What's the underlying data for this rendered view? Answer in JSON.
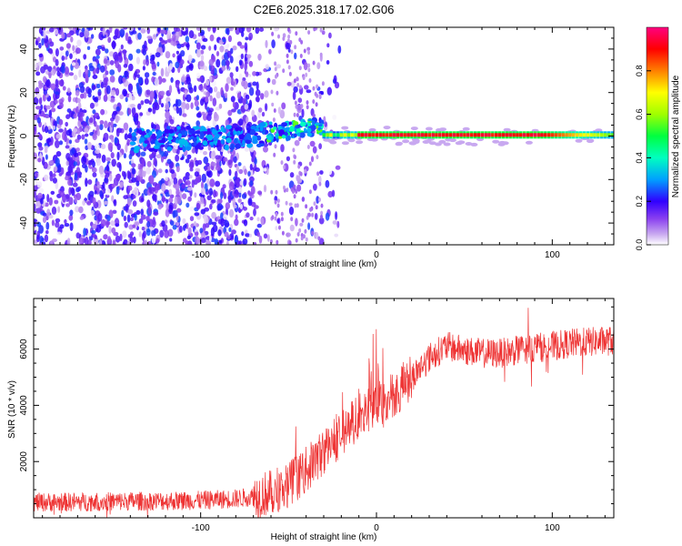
{
  "figure_title": "C2E6.2025.318.17.02.G06",
  "chart_data": [
    {
      "type": "heatmap",
      "title": "C2E6.2025.318.17.02.G06",
      "xlabel": "Height of straight line (km)",
      "ylabel": "Frequency (Hz)",
      "xlim": [
        -195,
        135
      ],
      "ylim": [
        -50,
        50
      ],
      "x_ticks": [
        -100,
        0,
        100
      ],
      "y_ticks": [
        -40,
        -20,
        0,
        20,
        40
      ],
      "x_tick_labels": [
        "-100",
        "0",
        "100"
      ],
      "y_tick_labels": [
        "-40",
        "-20",
        "0",
        "20",
        "40"
      ],
      "colorbar": {
        "label": "Normalized spectral amplitude",
        "range": [
          0,
          1
        ],
        "ticks": [
          0,
          0.2,
          0.4,
          0.6,
          0.8
        ],
        "tick_labels": [
          "0.0",
          "0.2",
          "0.4",
          "0.6",
          "0.8"
        ],
        "colormap": [
          "#ffffff",
          "#c8a8f0",
          "#5a00e6",
          "#0000ff",
          "#00c8ff",
          "#00ff80",
          "#aaff00",
          "#ffff00",
          "#ff8000",
          "#ff0000",
          "#ff0080"
        ]
      },
      "ridge": {
        "description_values": {
          "noise_region_x": [
            -195,
            -60
          ],
          "transition_x": [
            -60,
            -30
          ],
          "carrier_x": [
            -30,
            135
          ],
          "carrier_frequency_hz": 0.5,
          "carrier_peak_amplitude": 0.95,
          "noise_amplitude": 0.25
        }
      }
    },
    {
      "type": "line",
      "xlabel": "Height of straight line (km)",
      "ylabel": "SNR (10 * v/v)",
      "xlim": [
        -195,
        135
      ],
      "ylim": [
        0,
        7800
      ],
      "x_ticks": [
        -100,
        0,
        100
      ],
      "y_ticks": [
        2000,
        4000,
        6000
      ],
      "x_tick_labels": [
        "-100",
        "0",
        "100"
      ],
      "y_tick_labels": [
        "2000",
        "4000",
        "6000"
      ],
      "series": [
        {
          "name": "SNR",
          "color": "#ee3333",
          "envelope": {
            "x": [
              -195,
              -170,
              -150,
              -120,
              -100,
              -80,
              -70,
              -60,
              -50,
              -40,
              -30,
              -20,
              -10,
              0,
              10,
              20,
              30,
              40,
              50,
              60,
              70,
              80,
              90,
              100,
              110,
              120,
              135
            ],
            "y": [
              550,
              560,
              580,
              600,
              620,
              680,
              760,
              900,
              1200,
              1700,
              2350,
              3000,
              3600,
              4000,
              4400,
              5000,
              5700,
              6100,
              5950,
              5850,
              5850,
              5950,
              6050,
              6100,
              6200,
              6250,
              6300
            ]
          },
          "noise_amplitude": 380
        }
      ]
    }
  ]
}
